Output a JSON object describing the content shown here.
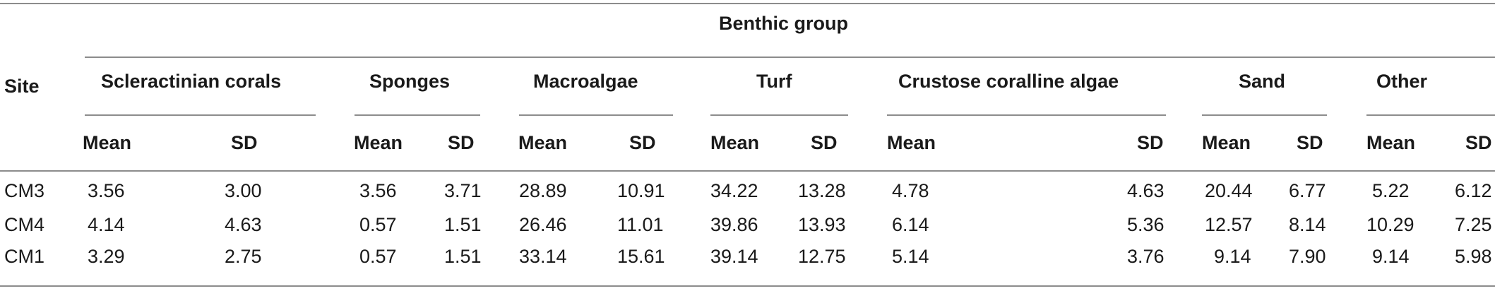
{
  "table": {
    "header_benthic": "Benthic group",
    "header_site": "Site",
    "groups": [
      {
        "name": "Scleractinian corals"
      },
      {
        "name": "Sponges"
      },
      {
        "name": "Macroalgae"
      },
      {
        "name": "Turf"
      },
      {
        "name": "Crustose coralline algae"
      },
      {
        "name": "Sand"
      },
      {
        "name": "Other"
      }
    ],
    "mean_label": "Mean",
    "sd_label": "SD",
    "rows": [
      {
        "site": "CM3",
        "vals": [
          "3.56",
          "3.00",
          "3.56",
          "3.71",
          "28.89",
          "10.91",
          "34.22",
          "13.28",
          "4.78",
          "4.63",
          "20.44",
          "6.77",
          "5.22",
          "6.12"
        ]
      },
      {
        "site": "CM4",
        "vals": [
          "4.14",
          "4.63",
          "0.57",
          "1.51",
          "26.46",
          "11.01",
          "39.86",
          "13.93",
          "6.14",
          "5.36",
          "12.57",
          "8.14",
          "10.29",
          "7.25"
        ]
      },
      {
        "site": "CM1",
        "vals": [
          "3.29",
          "2.75",
          "0.57",
          "1.51",
          "33.14",
          "15.61",
          "39.14",
          "12.75",
          "5.14",
          "3.76",
          "9.14",
          "7.90",
          "9.14",
          "5.98"
        ]
      }
    ]
  }
}
